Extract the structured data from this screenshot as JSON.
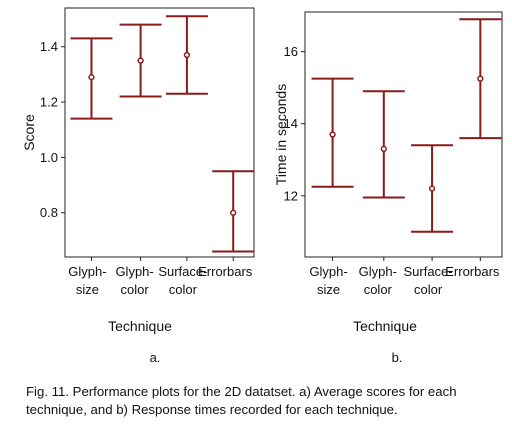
{
  "chart_data": [
    {
      "type": "errorbar",
      "panel_label": "a.",
      "ylabel": "Score",
      "xlabel": "Technique",
      "ylim": [
        0.64,
        1.54
      ],
      "yticks": [
        0.8,
        1.0,
        1.2,
        1.4
      ],
      "ytick_labels": [
        "0.8",
        "1.0",
        "1.2",
        "1.4"
      ],
      "categories": [
        {
          "lines": [
            "Glyph-",
            "size"
          ]
        },
        {
          "lines": [
            "Glyph-",
            "color"
          ]
        },
        {
          "lines": [
            "Surface-",
            "color"
          ]
        },
        {
          "lines": [
            "Errorbars"
          ]
        }
      ],
      "means": [
        1.29,
        1.35,
        1.37,
        0.8
      ],
      "lower": [
        1.14,
        1.22,
        1.23,
        0.66
      ],
      "upper": [
        1.43,
        1.48,
        1.51,
        0.95
      ],
      "grid": false,
      "color": "#8b1a1a"
    },
    {
      "type": "errorbar",
      "panel_label": "b.",
      "ylabel": "Time in seconds",
      "xlabel": "Technique",
      "ylim": [
        10.3,
        17.1
      ],
      "yticks": [
        12,
        14,
        16
      ],
      "ytick_labels": [
        "12",
        "14",
        "16"
      ],
      "categories": [
        {
          "lines": [
            "Glyph-",
            "size"
          ]
        },
        {
          "lines": [
            "Glyph-",
            "color"
          ]
        },
        {
          "lines": [
            "Surface-",
            "color"
          ]
        },
        {
          "lines": [
            "Errorbars"
          ]
        }
      ],
      "means": [
        13.7,
        13.3,
        12.2,
        15.25
      ],
      "lower": [
        12.25,
        11.95,
        11.0,
        13.6
      ],
      "upper": [
        15.25,
        14.9,
        13.4,
        16.9
      ],
      "grid": false,
      "color": "#8b1a1a"
    }
  ],
  "caption": "Fig. 11. Performance plots for the 2D datatset. a) Average scores for each technique, and b) Response times recorded for each technique."
}
